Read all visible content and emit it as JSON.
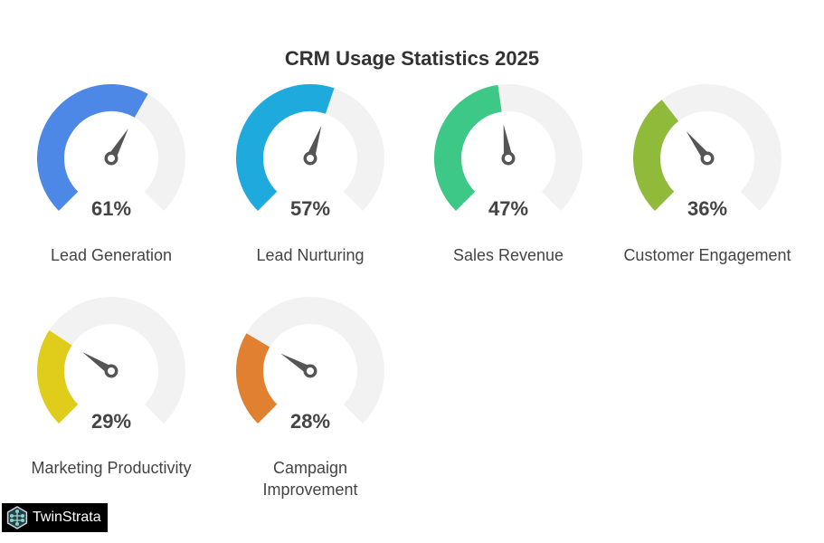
{
  "chart_data": {
    "type": "gauge",
    "title": "CRM Usage Statistics 2025",
    "range": [
      0,
      100
    ],
    "unit": "%",
    "track_color": "#f2f2f2",
    "needle_color": "#555555",
    "gauges": [
      {
        "label": [
          "Lead Generation"
        ],
        "value": 61,
        "display": "61%",
        "color": "#4e88e6"
      },
      {
        "label": [
          "Lead Nurturing"
        ],
        "value": 57,
        "display": "57%",
        "color": "#1eaadc"
      },
      {
        "label": [
          "Sales Revenue"
        ],
        "value": 47,
        "display": "47%",
        "color": "#3ec887"
      },
      {
        "label": [
          "Customer Engagement"
        ],
        "value": 36,
        "display": "36%",
        "color": "#8fba3a"
      },
      {
        "label": [
          "Marketing Productivity"
        ],
        "value": 29,
        "display": "29%",
        "color": "#e0cc1a"
      },
      {
        "label": [
          "Campaign",
          "Improvement"
        ],
        "value": 28,
        "display": "28%",
        "color": "#e08030"
      }
    ]
  },
  "logo": {
    "text": "TwinStrata"
  }
}
